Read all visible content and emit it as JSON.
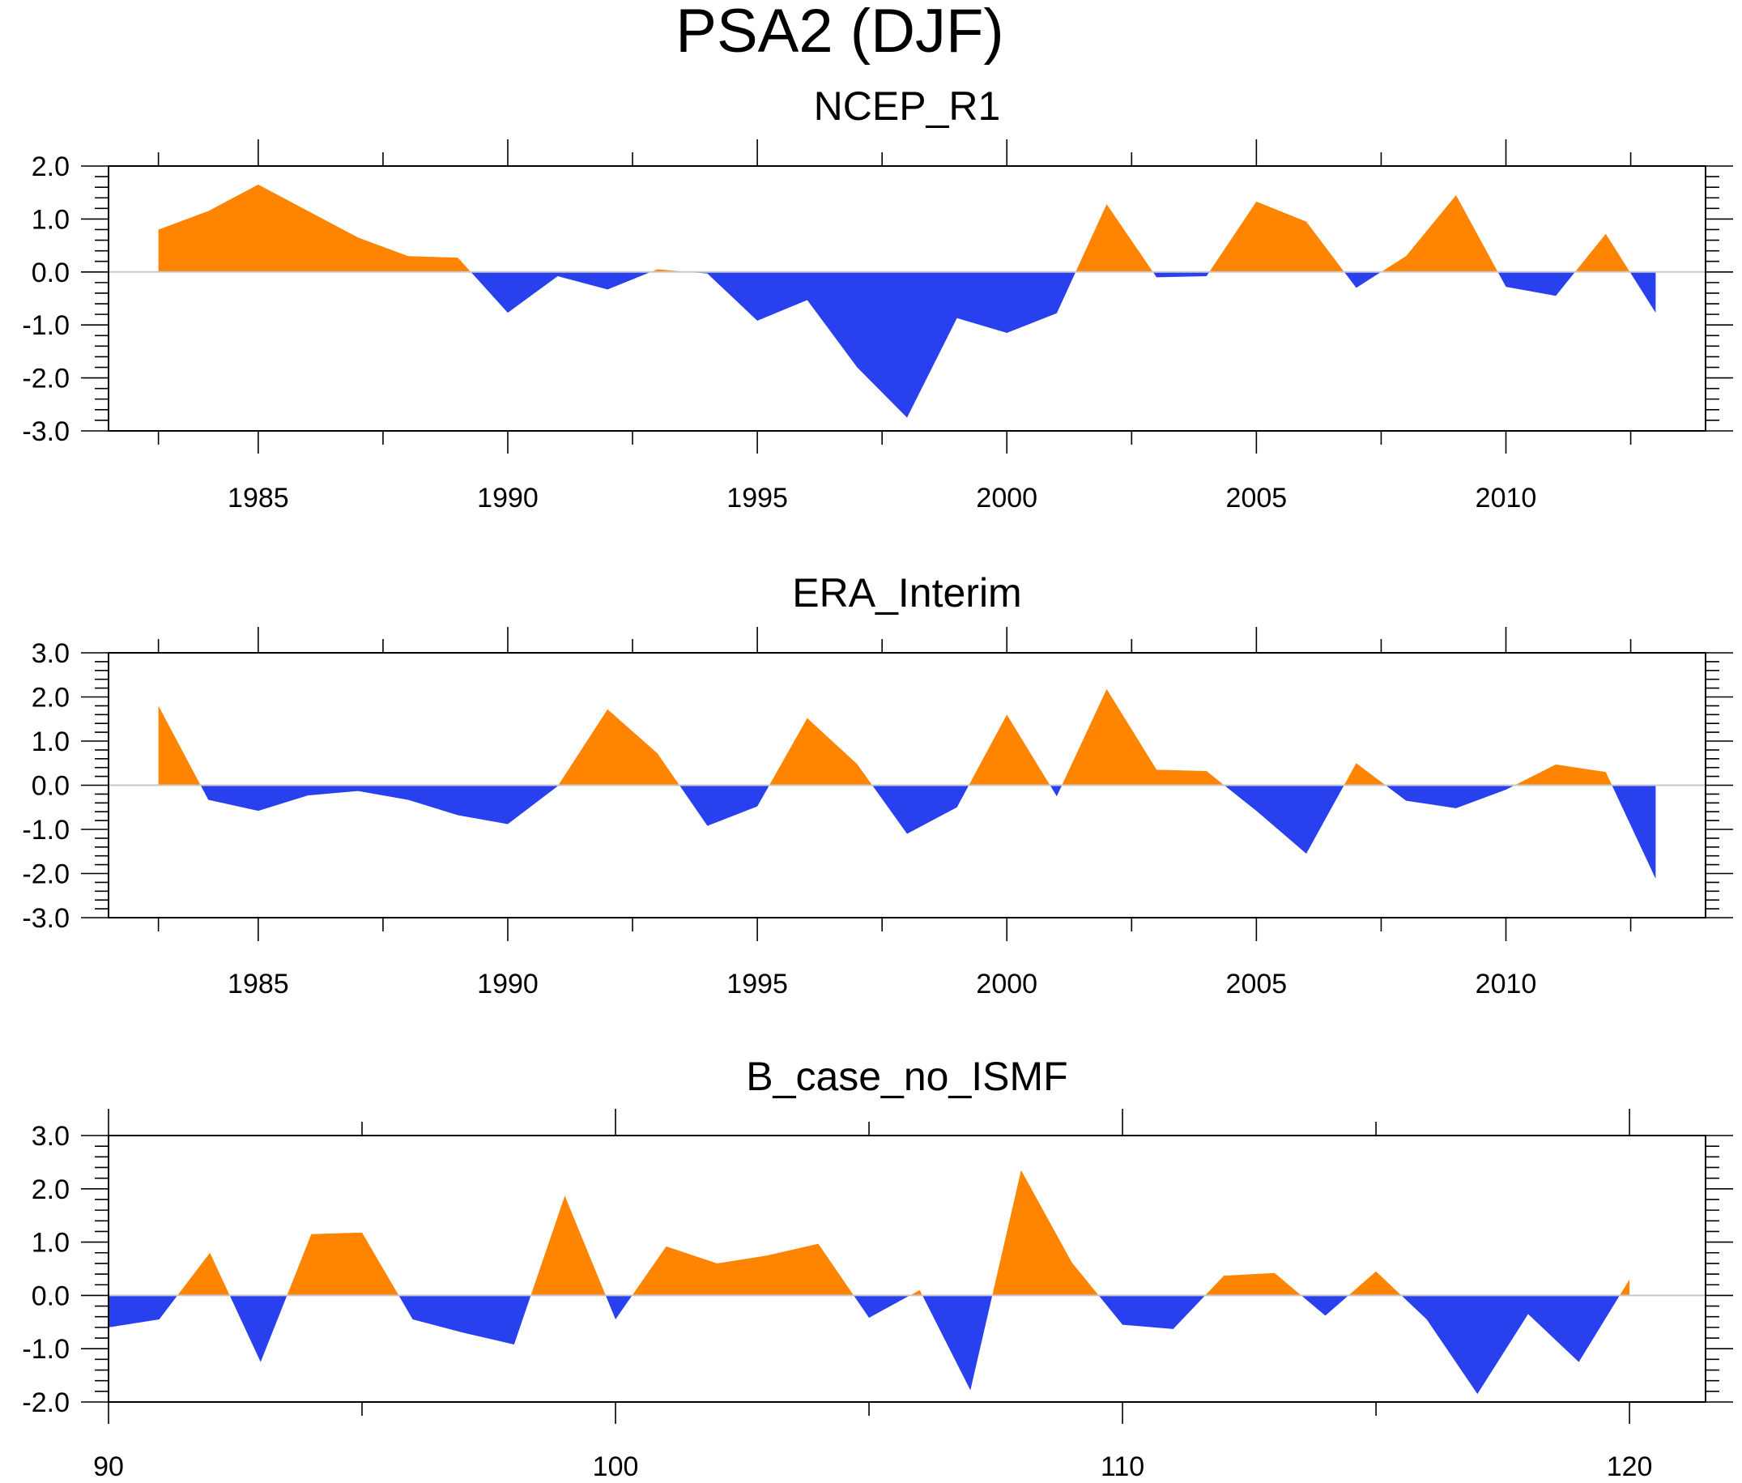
{
  "title": "PSA2 (DJF)",
  "colors": {
    "positive": "#ff8400",
    "negative": "#2840ee",
    "zero_line": "#c8c8c8"
  },
  "chart_data": [
    {
      "type": "area",
      "title": "NCEP_R1",
      "xlim": [
        1982,
        2014
      ],
      "ylim": [
        -3,
        2
      ],
      "xticks": [
        1985,
        1990,
        1995,
        2000,
        2005,
        2010
      ],
      "xtick_labels": [
        "1985",
        "1990",
        "1995",
        "2000",
        "2005",
        "2010"
      ],
      "yticks": [
        -3,
        -2,
        -1,
        0,
        1,
        2
      ],
      "ytick_labels": [
        "-3.0",
        "-2.0",
        "-1.0",
        "0.0",
        "1.0",
        "2.0"
      ],
      "x": [
        1983,
        1984,
        1985,
        1986,
        1987,
        1988,
        1989,
        1990,
        1991,
        1992,
        1993,
        1994,
        1995,
        1996,
        1997,
        1998,
        1999,
        2000,
        2001,
        2002,
        2003,
        2004,
        2005,
        2006,
        2007,
        2008,
        2009,
        2010,
        2011,
        2012,
        2013
      ],
      "values": [
        0.8,
        1.15,
        1.65,
        1.15,
        0.65,
        0.3,
        0.27,
        -0.77,
        -0.08,
        -0.33,
        0.05,
        -0.03,
        -0.92,
        -0.53,
        -1.8,
        -2.75,
        -0.87,
        -1.15,
        -0.78,
        1.28,
        -0.1,
        -0.08,
        1.33,
        0.95,
        -0.3,
        0.3,
        1.45,
        -0.28,
        -0.45,
        0.72,
        -0.77
      ]
    },
    {
      "type": "area",
      "title": "ERA_Interim",
      "xlim": [
        1982,
        2014
      ],
      "ylim": [
        -3,
        3
      ],
      "xticks": [
        1985,
        1990,
        1995,
        2000,
        2005,
        2010
      ],
      "xtick_labels": [
        "1985",
        "1990",
        "1995",
        "2000",
        "2005",
        "2010"
      ],
      "yticks": [
        -3,
        -2,
        -1,
        0,
        1,
        2,
        3
      ],
      "ytick_labels": [
        "-3.0",
        "-2.0",
        "-1.0",
        "0.0",
        "1.0",
        "2.0",
        "3.0"
      ],
      "x": [
        1983,
        1984,
        1985,
        1986,
        1987,
        1988,
        1989,
        1990,
        1991,
        1992,
        1993,
        1994,
        1995,
        1996,
        1997,
        1998,
        1999,
        2000,
        2001,
        2002,
        2003,
        2004,
        2005,
        2006,
        2007,
        2008,
        2009,
        2010,
        2011,
        2012,
        2013
      ],
      "values": [
        1.8,
        -0.33,
        -0.58,
        -0.23,
        -0.13,
        -0.33,
        -0.68,
        -0.88,
        -0.02,
        1.72,
        0.72,
        -0.92,
        -0.48,
        1.52,
        0.48,
        -1.1,
        -0.5,
        1.6,
        -0.25,
        2.18,
        0.35,
        0.32,
        -0.58,
        -1.55,
        0.5,
        -0.35,
        -0.52,
        -0.1,
        0.47,
        0.3,
        -2.12
      ]
    },
    {
      "type": "area",
      "title": "B_case_no_ISMF",
      "xlim": [
        90,
        121.5
      ],
      "ylim": [
        -2,
        3
      ],
      "xticks": [
        90,
        100,
        110,
        120
      ],
      "xtick_labels": [
        "90",
        "100",
        "110",
        "120"
      ],
      "yticks": [
        -2,
        -1,
        0,
        1,
        2,
        3
      ],
      "ytick_labels": [
        "-2.0",
        "-1.0",
        "0.0",
        "1.0",
        "2.0",
        "3.0"
      ],
      "x": [
        90,
        91,
        92,
        93,
        94,
        95,
        96,
        97,
        98,
        99,
        100,
        101,
        102,
        103,
        104,
        105,
        106,
        107,
        108,
        109,
        110,
        111,
        112,
        113,
        114,
        115,
        116,
        117,
        118,
        119,
        120
      ],
      "values": [
        -0.6,
        -0.45,
        0.8,
        -1.25,
        1.15,
        1.18,
        -0.45,
        -0.7,
        -0.92,
        1.87,
        -0.45,
        0.92,
        0.6,
        0.75,
        0.97,
        -0.42,
        0.1,
        -1.78,
        2.35,
        0.62,
        -0.55,
        -0.63,
        0.37,
        0.42,
        -0.38,
        0.45,
        -0.45,
        -1.85,
        -0.35,
        -1.25,
        0.3
      ]
    }
  ]
}
